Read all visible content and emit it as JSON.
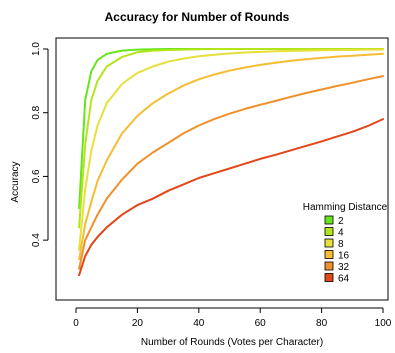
{
  "chart_data": {
    "type": "line",
    "title": "Accuracy for Number of Rounds",
    "xlabel": "Number of Rounds (Votes per Character)",
    "ylabel": "Accuracy",
    "xlim": [
      0,
      100
    ],
    "ylim": [
      0.25,
      1.0
    ],
    "x_ticks": [
      "0",
      "20",
      "40",
      "60",
      "80",
      "100"
    ],
    "y_ticks": [
      "0.4",
      "0.6",
      "0.8",
      "1.0"
    ],
    "legend": {
      "title": "Hamming Distance",
      "placement": "bottom-right"
    },
    "x": [
      1,
      3,
      5,
      7,
      10,
      15,
      20,
      25,
      30,
      35,
      40,
      45,
      50,
      55,
      60,
      65,
      70,
      75,
      80,
      85,
      90,
      95,
      100
    ],
    "series": [
      {
        "name": "2",
        "color": "#66e61a",
        "values": [
          0.5,
          0.84,
          0.93,
          0.965,
          0.985,
          0.995,
          0.998,
          0.999,
          1.0,
          1.0,
          1.0,
          1.0,
          1.0,
          1.0,
          1.0,
          1.0,
          1.0,
          1.0,
          1.0,
          1.0,
          1.0,
          1.0,
          1.0
        ]
      },
      {
        "name": "4",
        "color": "#b3e61a",
        "values": [
          0.44,
          0.7,
          0.84,
          0.9,
          0.945,
          0.975,
          0.99,
          0.995,
          0.997,
          0.998,
          0.999,
          1.0,
          1.0,
          1.0,
          1.0,
          1.0,
          1.0,
          1.0,
          1.0,
          1.0,
          1.0,
          1.0,
          1.0
        ]
      },
      {
        "name": "8",
        "color": "#e8e03a",
        "values": [
          0.37,
          0.56,
          0.68,
          0.76,
          0.83,
          0.89,
          0.925,
          0.945,
          0.96,
          0.97,
          0.977,
          0.982,
          0.986,
          0.989,
          0.991,
          0.993,
          0.994,
          0.995,
          0.996,
          0.997,
          0.997,
          0.998,
          0.998
        ]
      },
      {
        "name": "16",
        "color": "#f5bd31",
        "values": [
          0.34,
          0.45,
          0.52,
          0.585,
          0.65,
          0.735,
          0.79,
          0.83,
          0.86,
          0.885,
          0.905,
          0.92,
          0.932,
          0.942,
          0.95,
          0.957,
          0.963,
          0.968,
          0.972,
          0.976,
          0.979,
          0.982,
          0.985
        ]
      },
      {
        "name": "32",
        "color": "#f0902a",
        "values": [
          0.31,
          0.4,
          0.44,
          0.48,
          0.53,
          0.59,
          0.64,
          0.675,
          0.705,
          0.735,
          0.76,
          0.78,
          0.797,
          0.812,
          0.825,
          0.837,
          0.85,
          0.862,
          0.873,
          0.884,
          0.894,
          0.905,
          0.915
        ]
      },
      {
        "name": "64",
        "color": "#e2461b",
        "values": [
          0.29,
          0.35,
          0.385,
          0.41,
          0.44,
          0.48,
          0.51,
          0.53,
          0.555,
          0.575,
          0.595,
          0.61,
          0.625,
          0.64,
          0.655,
          0.668,
          0.682,
          0.696,
          0.71,
          0.725,
          0.74,
          0.758,
          0.78
        ]
      }
    ]
  }
}
